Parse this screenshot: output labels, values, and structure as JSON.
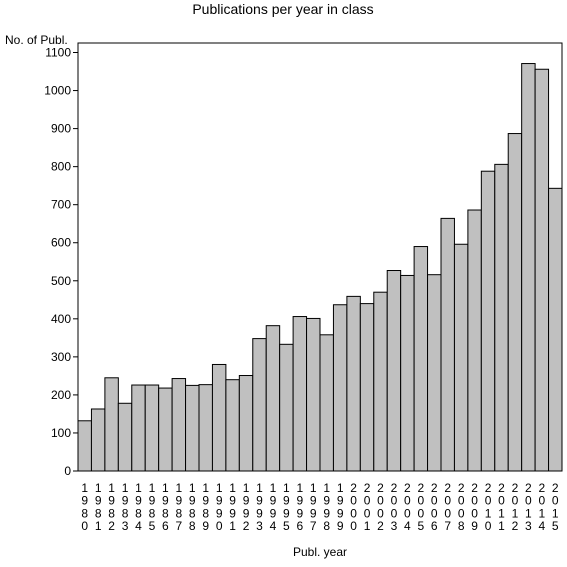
{
  "chart_data": {
    "type": "bar",
    "title": "Publications per year in class",
    "ylabel": "No. of Publ.",
    "xlabel": "Publ. year",
    "ylim": [
      0,
      1125
    ],
    "yticks": [
      0,
      100,
      200,
      300,
      400,
      500,
      600,
      700,
      800,
      900,
      1000,
      1100
    ],
    "grid": false,
    "bar_color": "#c0c0c0",
    "categories": [
      "1980",
      "1981",
      "1982",
      "1983",
      "1984",
      "1985",
      "1986",
      "1987",
      "1988",
      "1989",
      "1990",
      "1991",
      "1992",
      "1993",
      "1994",
      "1995",
      "1996",
      "1997",
      "1998",
      "1999",
      "2000",
      "2001",
      "2002",
      "2003",
      "2004",
      "2005",
      "2006",
      "2007",
      "2008",
      "2009",
      "2010",
      "2011",
      "2012",
      "2013",
      "2014",
      "2015"
    ],
    "values": [
      132,
      163,
      245,
      178,
      226,
      226,
      218,
      243,
      225,
      227,
      280,
      240,
      251,
      348,
      382,
      333,
      406,
      401,
      358,
      437,
      459,
      440,
      470,
      527,
      514,
      590,
      516,
      664,
      596,
      686,
      788,
      806,
      887,
      1071,
      1056,
      743
    ]
  }
}
